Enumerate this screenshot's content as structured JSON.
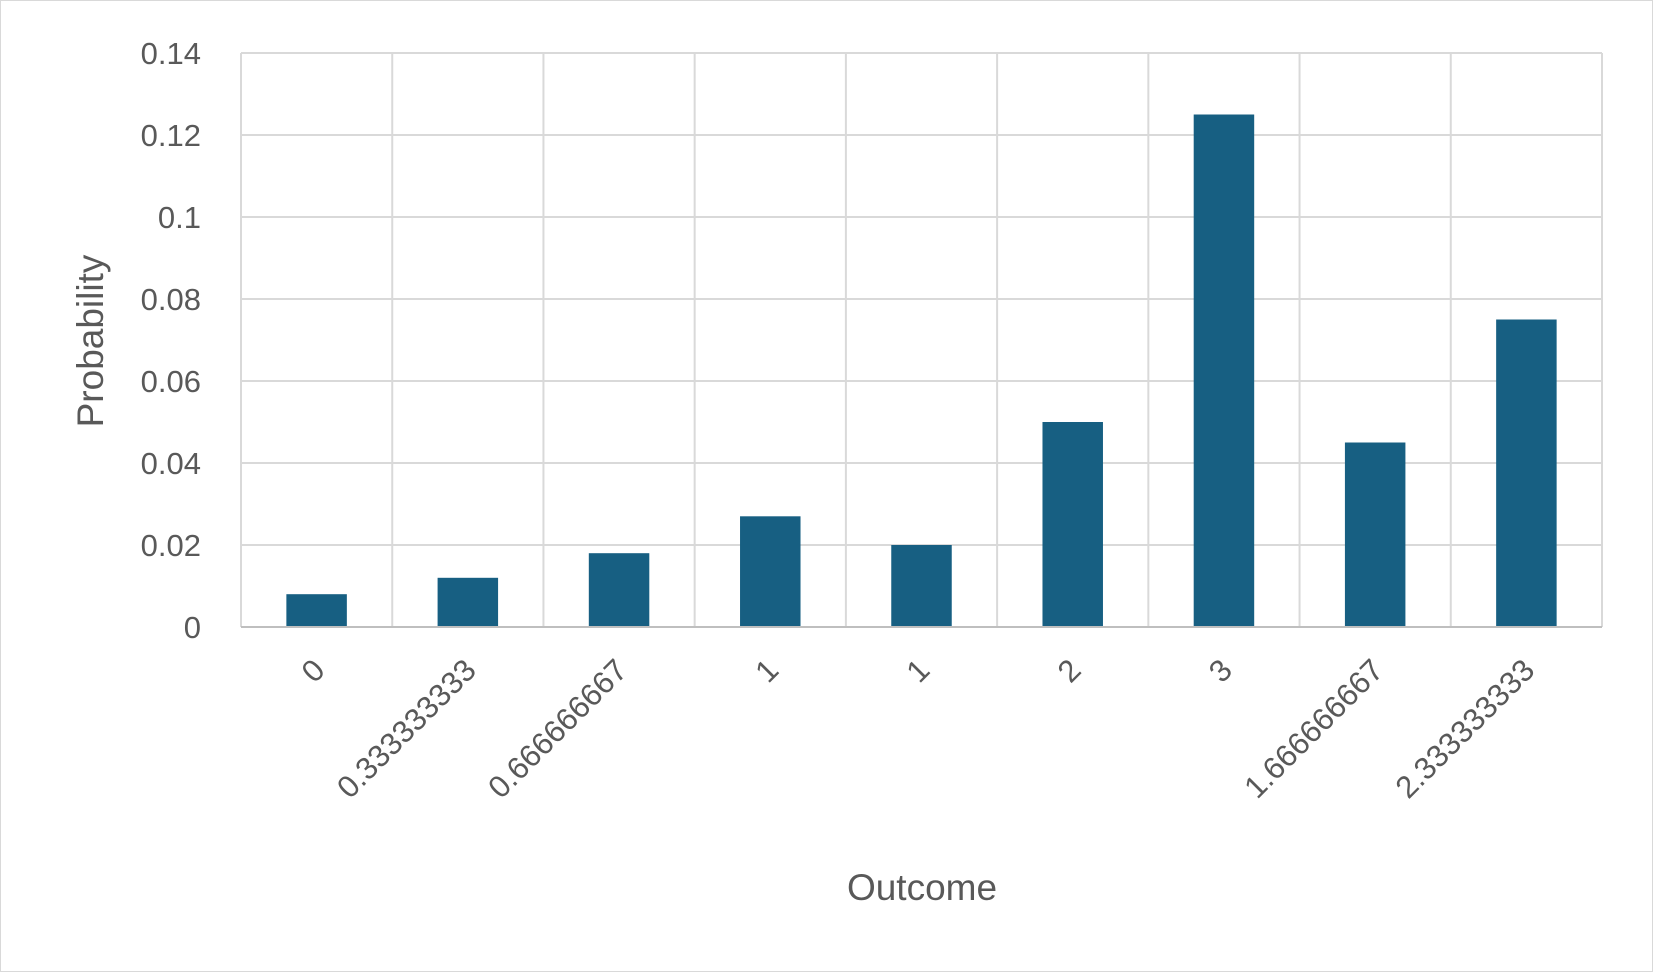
{
  "chart_data": {
    "type": "bar",
    "title": "",
    "xlabel": "Outcome",
    "ylabel": "Probability",
    "categories": [
      "0",
      "0.333333333",
      "0.666666667",
      "1",
      "1",
      "2",
      "3",
      "1.666666667",
      "2.333333333"
    ],
    "values": [
      0.008,
      0.012,
      0.018,
      0.027,
      0.02,
      0.05,
      0.125,
      0.045,
      0.075
    ],
    "ylim": [
      0,
      0.14
    ],
    "yticks": [
      "0",
      "0.02",
      "0.04",
      "0.06",
      "0.08",
      "0.1",
      "0.12",
      "0.14"
    ],
    "grid": true,
    "legend": "none",
    "bar_color": "#175f82"
  }
}
